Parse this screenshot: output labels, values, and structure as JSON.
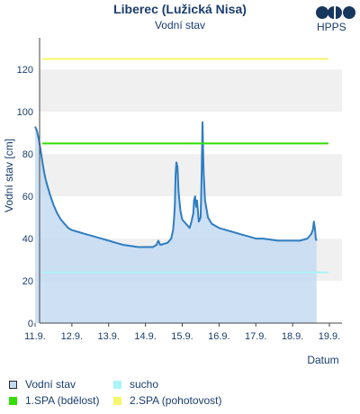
{
  "header": {
    "title": "Liberec (Lužická Nisa)",
    "subtitle": "Vodní stav",
    "logo_text": "HPPS"
  },
  "chart_data": {
    "type": "area",
    "ylabel": "Vodní stav [cm]",
    "xlabel": "Datum",
    "ylim": [
      0,
      135
    ],
    "yticks": [
      0,
      20,
      40,
      60,
      80,
      100,
      120
    ],
    "xlim": [
      0,
      8.25
    ],
    "x_ticks": [
      {
        "x": 0,
        "label": "11.9."
      },
      {
        "x": 1,
        "label": "12.9."
      },
      {
        "x": 2,
        "label": "13.9."
      },
      {
        "x": 3,
        "label": "14.9."
      },
      {
        "x": 4,
        "label": "15.9."
      },
      {
        "x": 5,
        "label": "16.9."
      },
      {
        "x": 6,
        "label": "17.9."
      },
      {
        "x": 7,
        "label": "18.9."
      },
      {
        "x": 8,
        "label": "19.9."
      }
    ],
    "grid_bands": true,
    "thresholds": [
      {
        "name": "sucho",
        "value": 24,
        "color": "#aaf4f6"
      },
      {
        "name": "1.SPA (bdělost)",
        "value": 85,
        "color": "#33dd00"
      },
      {
        "name": "2.SPA (pohotovost)",
        "value": 125,
        "color": "#f6f66a"
      }
    ],
    "series": [
      {
        "name": "Vodní stav",
        "line_color": "#2f7dc0",
        "fill_color": "#c4daf2",
        "points": [
          [
            0.0,
            93
          ],
          [
            0.05,
            91
          ],
          [
            0.1,
            87
          ],
          [
            0.15,
            82
          ],
          [
            0.2,
            76
          ],
          [
            0.25,
            71
          ],
          [
            0.3,
            67
          ],
          [
            0.4,
            61
          ],
          [
            0.5,
            56
          ],
          [
            0.6,
            52
          ],
          [
            0.7,
            49
          ],
          [
            0.8,
            47
          ],
          [
            0.9,
            45
          ],
          [
            1.0,
            44
          ],
          [
            1.2,
            43
          ],
          [
            1.4,
            42
          ],
          [
            1.6,
            41
          ],
          [
            1.8,
            40
          ],
          [
            2.0,
            39
          ],
          [
            2.2,
            38
          ],
          [
            2.4,
            37
          ],
          [
            2.6,
            36.5
          ],
          [
            2.8,
            36
          ],
          [
            3.0,
            36
          ],
          [
            3.2,
            36
          ],
          [
            3.3,
            37
          ],
          [
            3.35,
            39
          ],
          [
            3.4,
            37
          ],
          [
            3.6,
            38
          ],
          [
            3.7,
            40
          ],
          [
            3.75,
            44
          ],
          [
            3.78,
            50
          ],
          [
            3.8,
            56
          ],
          [
            3.82,
            70
          ],
          [
            3.84,
            76
          ],
          [
            3.87,
            74
          ],
          [
            3.9,
            62
          ],
          [
            3.95,
            53
          ],
          [
            4.0,
            49
          ],
          [
            4.1,
            47
          ],
          [
            4.2,
            45
          ],
          [
            4.25,
            48
          ],
          [
            4.3,
            52
          ],
          [
            4.32,
            58
          ],
          [
            4.35,
            60
          ],
          [
            4.38,
            55
          ],
          [
            4.4,
            58
          ],
          [
            4.45,
            48
          ],
          [
            4.5,
            50
          ],
          [
            4.52,
            65
          ],
          [
            4.55,
            95
          ],
          [
            4.58,
            72
          ],
          [
            4.62,
            58
          ],
          [
            4.7,
            50
          ],
          [
            4.8,
            47
          ],
          [
            5.0,
            45
          ],
          [
            5.2,
            44
          ],
          [
            5.4,
            43
          ],
          [
            5.6,
            42
          ],
          [
            5.8,
            41
          ],
          [
            6.0,
            40
          ],
          [
            6.2,
            40
          ],
          [
            6.4,
            39.5
          ],
          [
            6.6,
            39
          ],
          [
            6.8,
            39
          ],
          [
            7.0,
            39
          ],
          [
            7.2,
            39
          ],
          [
            7.4,
            40
          ],
          [
            7.5,
            42
          ],
          [
            7.55,
            44
          ],
          [
            7.58,
            48
          ],
          [
            7.61,
            44
          ],
          [
            7.63,
            40
          ],
          [
            7.65,
            39
          ]
        ]
      }
    ],
    "legend": [
      {
        "label": "Vodní stav",
        "color": "#c4daf2",
        "border": "#2a2a2a"
      },
      {
        "label": "sucho",
        "color": "#aaf4f6"
      },
      {
        "label": "1.SPA (bdělost)",
        "color": "#33dd00"
      },
      {
        "label": "2.SPA (pohotovost)",
        "color": "#f6f66a"
      }
    ],
    "legend_position": "bottom"
  }
}
